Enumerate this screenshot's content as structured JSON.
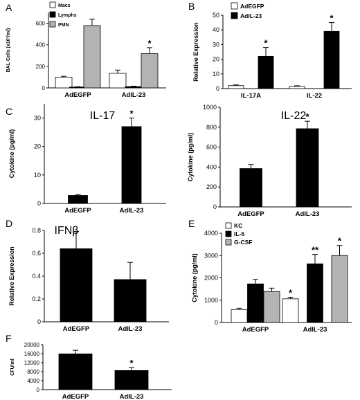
{
  "panels": [
    {
      "id": "A",
      "label": "A",
      "chart_data": {
        "type": "bar",
        "title": "",
        "ylabel": "BAL Cells (x10³/ml)",
        "ylim": [
          0,
          700
        ],
        "yticks": [
          "0",
          "200",
          "400",
          "600"
        ],
        "ytick_values": [
          0,
          200,
          400,
          600
        ],
        "categories": [
          "AdEGFP",
          "AdIL-23"
        ],
        "legend_position": "top-left",
        "series": [
          {
            "name": "Macs",
            "color": "#ffffff",
            "values": [
              100,
              135
            ],
            "errors": [
              8,
              30
            ],
            "stars": [
              "",
              ""
            ]
          },
          {
            "name": "Lymphs",
            "color": "#000000",
            "values": [
              8,
              12
            ],
            "errors": [
              3,
              4
            ],
            "stars": [
              "",
              ""
            ]
          },
          {
            "name": "PMN",
            "color": "#b3b3b3",
            "values": [
              578,
              318
            ],
            "errors": [
              60,
              55
            ],
            "stars": [
              "",
              "*"
            ]
          }
        ]
      }
    },
    {
      "id": "B",
      "label": "B",
      "chart_data": {
        "type": "bar",
        "title": "",
        "ylabel": "Relative Expression",
        "ylim": [
          0,
          50
        ],
        "yticks": [
          "0",
          "10",
          "20",
          "30",
          "40",
          "50"
        ],
        "ytick_values": [
          0,
          10,
          20,
          30,
          40,
          50
        ],
        "categories": [
          "IL-17A",
          "IL-22"
        ],
        "legend_position": "top-left",
        "series": [
          {
            "name": "AdEGFP",
            "color": "#ffffff",
            "values": [
              2,
              1.5
            ],
            "errors": [
              0.5,
              0.4
            ],
            "stars": [
              "",
              ""
            ]
          },
          {
            "name": "AdIL-23",
            "color": "#000000",
            "values": [
              22,
              39
            ],
            "errors": [
              6,
              6
            ],
            "stars": [
              "*",
              "*"
            ]
          }
        ]
      }
    },
    {
      "id": "C1",
      "label": "C",
      "chart_data": {
        "type": "bar",
        "title": "IL-17",
        "ylabel": "Cytokine (pg/ml)",
        "ylim": [
          0,
          35
        ],
        "yticks": [
          "0",
          "10",
          "20",
          "30"
        ],
        "ytick_values": [
          0,
          10,
          20,
          30
        ],
        "categories": [
          "AdEGFP",
          "AdIL-23"
        ],
        "series": [
          {
            "name": "",
            "color": "#000000",
            "values": [
              2.8,
              27
            ],
            "errors": [
              0.3,
              3
            ],
            "stars": [
              "",
              "*"
            ]
          }
        ]
      }
    },
    {
      "id": "C2",
      "label": "",
      "chart_data": {
        "type": "bar",
        "title": "IL-22",
        "ylabel": "Cytokine (pg/ml)",
        "ylim": [
          0,
          1000
        ],
        "yticks": [
          "0",
          "200",
          "400",
          "600",
          "800",
          "1000"
        ],
        "ytick_values": [
          0,
          200,
          400,
          600,
          800,
          1000
        ],
        "categories": [
          "AdEGFP",
          "AdIL-23"
        ],
        "series": [
          {
            "name": "",
            "color": "#000000",
            "values": [
              385,
              785
            ],
            "errors": [
              40,
              75
            ],
            "stars": [
              "",
              "*"
            ]
          }
        ]
      }
    },
    {
      "id": "D",
      "label": "D",
      "chart_data": {
        "type": "bar",
        "title": "IFNβ",
        "ylabel": "Relative Expression",
        "ylim": [
          0,
          0.8
        ],
        "yticks": [
          "0",
          "0.2",
          "0.4",
          "0.6",
          "0.8"
        ],
        "ytick_values": [
          0,
          0.2,
          0.4,
          0.6,
          0.8
        ],
        "categories": [
          "AdEGFP",
          "AdIL-23"
        ],
        "series": [
          {
            "name": "",
            "color": "#000000",
            "values": [
              0.64,
              0.37
            ],
            "errors": [
              0.15,
              0.15
            ],
            "stars": [
              "",
              ""
            ]
          }
        ]
      }
    },
    {
      "id": "E",
      "label": "E",
      "chart_data": {
        "type": "bar",
        "title": "",
        "ylabel": "Cytokine (pg/ml)",
        "ylim": [
          0,
          4000
        ],
        "yticks": [
          "0",
          "1000",
          "2000",
          "3000",
          "4000"
        ],
        "ytick_values": [
          0,
          1000,
          2000,
          3000,
          4000
        ],
        "categories": [
          "AdEGFP",
          "AdIL-23"
        ],
        "legend_position": "top-left",
        "series": [
          {
            "name": "KC",
            "color": "#ffffff",
            "values": [
              580,
              1060
            ],
            "errors": [
              60,
              70
            ],
            "stars": [
              "",
              "*"
            ]
          },
          {
            "name": "IL-6",
            "color": "#000000",
            "values": [
              1730,
              2630
            ],
            "errors": [
              200,
              420
            ],
            "stars": [
              "",
              "**"
            ]
          },
          {
            "name": "G-CSF",
            "color": "#b3b3b3",
            "values": [
              1390,
              3000
            ],
            "errors": [
              150,
              450
            ],
            "stars": [
              "",
              "*"
            ]
          }
        ]
      }
    },
    {
      "id": "F",
      "label": "F",
      "chart_data": {
        "type": "bar",
        "title": "",
        "ylabel": "CFU/ml",
        "ylim": [
          0,
          20000
        ],
        "yticks": [
          "0",
          "4000",
          "8000",
          "12000",
          "16000",
          "20000"
        ],
        "ytick_values": [
          0,
          4000,
          8000,
          12000,
          16000,
          20000
        ],
        "categories": [
          "AdEGFP",
          "AdIL-23"
        ],
        "series": [
          {
            "name": "",
            "color": "#000000",
            "values": [
              15900,
              8500
            ],
            "errors": [
              1600,
              1300
            ],
            "stars": [
              "",
              "*"
            ]
          }
        ]
      }
    }
  ]
}
